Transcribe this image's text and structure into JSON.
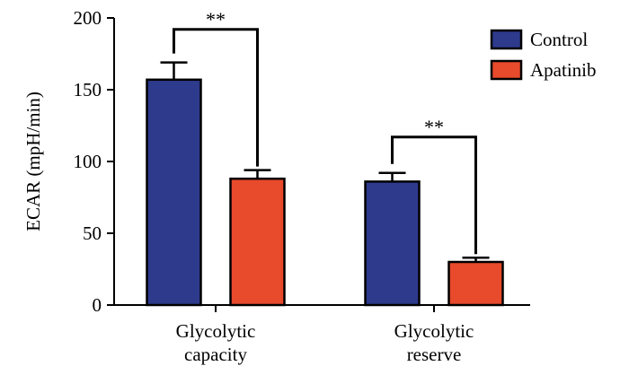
{
  "chart_data": {
    "type": "bar",
    "ylabel": "ECAR (mpH/min)",
    "ylim": [
      0,
      200
    ],
    "yticks": [
      0,
      50,
      100,
      150,
      200
    ],
    "categories": [
      [
        "Glycolytic",
        "capacity"
      ],
      [
        "Glycolytic",
        "reserve"
      ]
    ],
    "series": [
      {
        "name": "Control",
        "color": "#2e3a8c",
        "values": [
          157,
          86
        ],
        "errors": [
          12,
          6
        ]
      },
      {
        "name": "Apatinib",
        "color": "#e84a2c",
        "values": [
          88,
          30
        ],
        "errors": [
          6,
          3
        ]
      }
    ],
    "significance": [
      {
        "category": 0,
        "label": "**",
        "bracket_y": 192
      },
      {
        "category": 1,
        "label": "**",
        "bracket_y": 117
      }
    ],
    "legend_position": "top-right"
  }
}
